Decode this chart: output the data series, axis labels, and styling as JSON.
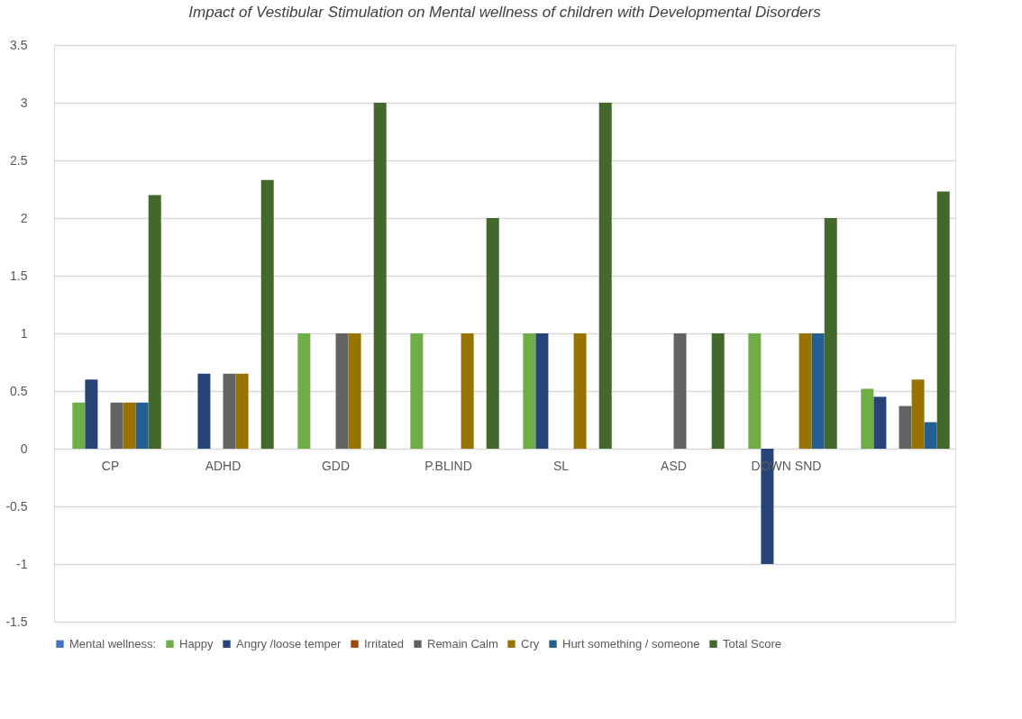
{
  "chart_data": {
    "type": "bar",
    "title": "Impact of Vestibular Stimulation on Mental wellness of children with Developmental Disorders",
    "categories": [
      "CP",
      "ADHD",
      "GDD",
      "P.BLIND",
      "SL",
      "ASD",
      "DOWN SND",
      null
    ],
    "series": [
      {
        "name": "Mental wellness:",
        "color": "#4472c4",
        "values": [
          null,
          null,
          null,
          null,
          null,
          null,
          null,
          null
        ]
      },
      {
        "name": "Happy",
        "color": "#70ad47",
        "values": [
          0.4,
          null,
          1,
          1,
          1,
          null,
          1,
          0.52
        ]
      },
      {
        "name": "Angry /loose temper",
        "color": "#264478",
        "values": [
          0.6,
          0.65,
          null,
          null,
          1,
          null,
          -1,
          0.45
        ]
      },
      {
        "name": "Irritated",
        "color": "#9e480e",
        "values": [
          null,
          null,
          null,
          null,
          null,
          null,
          null,
          null
        ]
      },
      {
        "name": "Remain Calm",
        "color": "#636363",
        "values": [
          0.4,
          0.65,
          1,
          null,
          null,
          1,
          null,
          0.37
        ]
      },
      {
        "name": "Cry",
        "color": "#997300",
        "values": [
          0.4,
          0.65,
          1,
          1,
          1,
          null,
          1,
          0.6
        ]
      },
      {
        "name": "Hurt something / someone",
        "color": "#255e91",
        "values": [
          0.4,
          null,
          null,
          null,
          null,
          null,
          1,
          0.23
        ]
      },
      {
        "name": "Total Score",
        "color": "#43682b",
        "values": [
          2.2,
          2.33,
          3,
          2,
          3,
          1,
          2,
          2.23
        ]
      }
    ],
    "ylim": [
      -1.5,
      3.5
    ],
    "yticks": [
      -1.5,
      -1,
      -0.5,
      0,
      0.5,
      1,
      1.5,
      2,
      2.5,
      3,
      3.5
    ],
    "grid": "y",
    "legend": "bottom"
  }
}
